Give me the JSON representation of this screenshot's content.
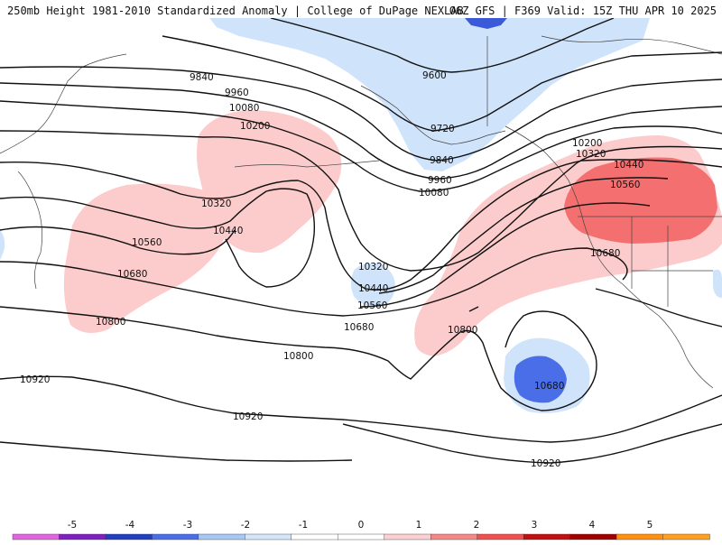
{
  "header": {
    "left": "250mb Height 1981-2010 Standardized Anomaly | College of DuPage NEXLAB",
    "right": "06Z GFS | F369 Valid: 15Z THU APR 10 2025"
  },
  "contours": [
    "9600",
    "9720",
    "9840",
    "9840",
    "9960",
    "9960",
    "10080",
    "10080",
    "10200",
    "10200",
    "10320",
    "10320",
    "10320",
    "10440",
    "10440",
    "10440",
    "10560",
    "10560",
    "10560",
    "10680",
    "10680",
    "10680",
    "10680",
    "10800",
    "10800",
    "10800",
    "10920",
    "10920",
    "10920"
  ],
  "colorbar": {
    "ticks": [
      "-5",
      "-4",
      "-3",
      "-2",
      "-1",
      "0",
      "1",
      "2",
      "3",
      "4",
      "5"
    ],
    "colors": [
      "#e066e0",
      "#8020c0",
      "#2040c0",
      "#4a6ee8",
      "#a8c8f4",
      "#d4e6fa",
      "#ffffff",
      "#ffffff",
      "#fcd0d0",
      "#f48888",
      "#f05050",
      "#c01010",
      "#a00000",
      "#ff9010",
      "#ffa020"
    ]
  },
  "map_colors": {
    "neg_light": "#cfe3fb",
    "neg_mid": "#6a8ef0",
    "neg_strong": "#3a5ad8",
    "pos_light": "#fccccc",
    "pos_mid": "#f47070",
    "pos_strong": "#f05858"
  }
}
